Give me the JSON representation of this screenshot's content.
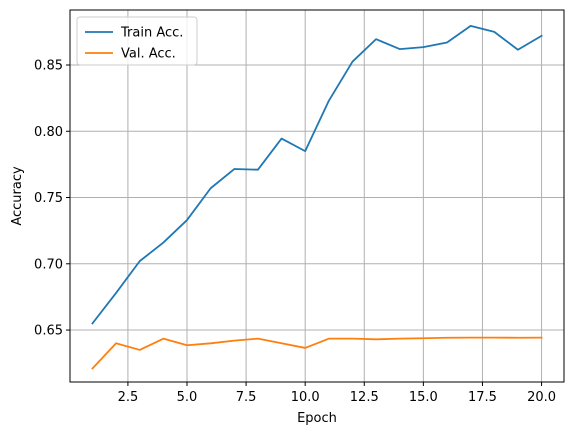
{
  "chart_data": {
    "type": "line",
    "title": "",
    "xlabel": "Epoch",
    "ylabel": "Accuracy",
    "xlim": [
      0.05,
      20.95
    ],
    "ylim": [
      0.6108,
      0.8915
    ],
    "xticks": [
      2.5,
      5.0,
      7.5,
      10.0,
      12.5,
      15.0,
      17.5,
      20.0
    ],
    "xtick_labels": [
      "2.5",
      "5.0",
      "7.5",
      "10.0",
      "12.5",
      "15.0",
      "17.5",
      "20.0"
    ],
    "yticks": [
      0.65,
      0.7,
      0.75,
      0.8,
      0.85
    ],
    "ytick_labels": [
      "0.65",
      "0.70",
      "0.75",
      "0.80",
      "0.85"
    ],
    "grid": true,
    "legend_position": "upper-left",
    "x": [
      1,
      2,
      3,
      4,
      5,
      6,
      7,
      8,
      9,
      10,
      11,
      12,
      13,
      14,
      15,
      16,
      17,
      18,
      19,
      20
    ],
    "series": [
      {
        "name": "Train Acc.",
        "color": "#1f77b4",
        "values": [
          0.655,
          0.678,
          0.702,
          0.716,
          0.733,
          0.757,
          0.7715,
          0.771,
          0.7945,
          0.785,
          0.823,
          0.8525,
          0.8695,
          0.862,
          0.8635,
          0.867,
          0.8795,
          0.875,
          0.8615,
          0.872
        ]
      },
      {
        "name": "Val. Acc.",
        "color": "#ff7f0e",
        "values": [
          0.621,
          0.64,
          0.635,
          0.6435,
          0.6385,
          0.64,
          0.642,
          0.6435,
          0.64,
          0.6365,
          0.6435,
          0.6435,
          0.643,
          0.6435,
          0.6438,
          0.6442,
          0.6443,
          0.6443,
          0.6442,
          0.6443
        ]
      }
    ]
  }
}
